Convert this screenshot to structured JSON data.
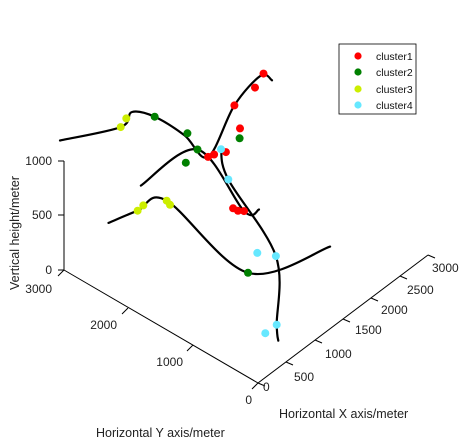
{
  "chart_data": {
    "type": "scatter",
    "projection": "3d",
    "xlabel": "Horizontal X axis/meter",
    "ylabel": "Horizontal Y axis/meter",
    "zlabel": "Vertical height/meter",
    "xlim": [
      0,
      3000
    ],
    "ylim": [
      0,
      3000
    ],
    "zlim": [
      0,
      1000
    ],
    "xticks": [
      0,
      500,
      1000,
      1500,
      2000,
      2500,
      3000
    ],
    "yticks": [
      0,
      1000,
      2000,
      3000
    ],
    "zticks": [
      0,
      500,
      1000
    ],
    "legend_position": "top-right",
    "trajectory_color": "#000000",
    "series": [
      {
        "name": "cluster1",
        "color": "#ff0000",
        "points": [
          [
            2550,
            2600,
            650
          ],
          [
            2650,
            2600,
            400
          ],
          [
            2400,
            2600,
            280
          ],
          [
            2250,
            2650,
            300
          ],
          [
            2200,
            2700,
            280
          ],
          [
            2800,
            2500,
            750
          ],
          [
            2950,
            2500,
            820
          ],
          [
            2060,
            2190,
            40
          ],
          [
            2100,
            2150,
            15
          ],
          [
            2150,
            2100,
            10
          ]
        ]
      },
      {
        "name": "cluster2",
        "color": "#008000",
        "points": [
          [
            1600,
            3000,
            780
          ],
          [
            1950,
            2800,
            560
          ],
          [
            1900,
            2600,
            500
          ],
          [
            2300,
            2300,
            550
          ],
          [
            1250,
            1250,
            90
          ],
          [
            1750,
            2650,
            420
          ]
        ]
      },
      {
        "name": "cluster3",
        "color": "#ccee00",
        "points": [
          [
            1000,
            3000,
            920
          ],
          [
            1100,
            3000,
            960
          ],
          [
            500,
            2300,
            590
          ],
          [
            600,
            2300,
            600
          ],
          [
            900,
            2200,
            560
          ],
          [
            900,
            2150,
            540
          ]
        ]
      },
      {
        "name": "cluster4",
        "color": "#66e8ff",
        "points": [
          [
            1700,
            1500,
            10
          ],
          [
            1800,
            1300,
            10
          ],
          [
            900,
            500,
            10
          ],
          [
            700,
            500,
            10
          ],
          [
            2100,
            2300,
            250
          ],
          [
            2200,
            2500,
            420
          ]
        ]
      }
    ],
    "trajectories": [
      [
        [
          500,
          3500,
          820
        ],
        [
          1000,
          3000,
          920
        ],
        [
          1200,
          3000,
          980
        ],
        [
          1600,
          3000,
          780
        ],
        [
          1900,
          2800,
          560
        ],
        [
          2200,
          2700,
          280
        ],
        [
          2550,
          2600,
          650
        ],
        [
          2900,
          2500,
          820
        ],
        [
          3100,
          2500,
          700
        ]
      ],
      [
        [
          100,
          2400,
          600
        ],
        [
          500,
          2300,
          590
        ],
        [
          900,
          2200,
          560
        ],
        [
          1250,
          1250,
          90
        ],
        [
          2300,
          900,
          40
        ]
      ],
      [
        [
          900,
          2600,
          560
        ],
        [
          1900,
          2600,
          500
        ],
        [
          2150,
          2100,
          10
        ],
        [
          2300,
          2000,
          0
        ]
      ],
      [
        [
          700,
          300,
          10
        ],
        [
          900,
          500,
          10
        ],
        [
          1800,
          1300,
          10
        ],
        [
          2100,
          2300,
          250
        ],
        [
          2200,
          2500,
          420
        ]
      ]
    ]
  },
  "legend": {
    "items": [
      {
        "label": "cluster1",
        "color": "#ff0000"
      },
      {
        "label": "cluster2",
        "color": "#008000"
      },
      {
        "label": "cluster3",
        "color": "#ccee00"
      },
      {
        "label": "cluster4",
        "color": "#66e8ff"
      }
    ]
  }
}
